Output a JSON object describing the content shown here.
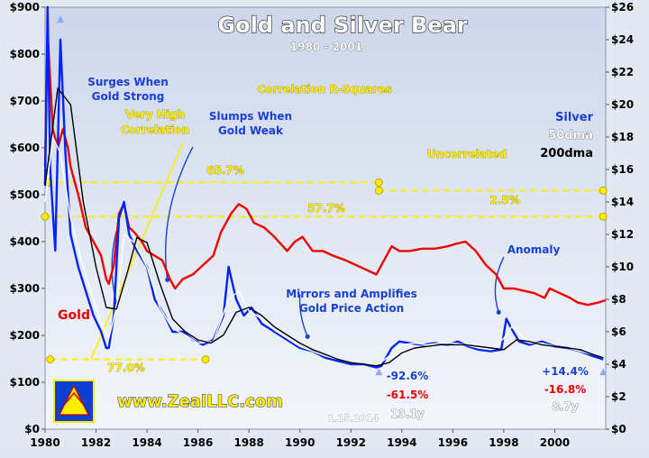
{
  "chart_data": {
    "type": "line",
    "title": "Gold and Silver Bear",
    "subtitle": "1980 - 2001",
    "x": {
      "min": 1980,
      "max": 2002,
      "ticks": [
        "1980",
        "1982",
        "1984",
        "1986",
        "1988",
        "1990",
        "1992",
        "1994",
        "1996",
        "1998",
        "2000"
      ]
    },
    "y_left": {
      "min": 0,
      "max": 900,
      "ticks": [
        "$0",
        "$100",
        "$200",
        "$300",
        "$400",
        "$500",
        "$600",
        "$700",
        "$800",
        "$900"
      ]
    },
    "y_right": {
      "min": 0,
      "max": 26,
      "ticks": [
        "$0",
        "$2",
        "$4",
        "$6",
        "$8",
        "$10",
        "$12",
        "$14",
        "$16",
        "$18",
        "$20",
        "$22",
        "$24",
        "$26"
      ]
    },
    "series": [
      {
        "name": "Gold",
        "color": "#ee0000",
        "axis": "left",
        "x": [
          1980.0,
          1980.1,
          1980.3,
          1980.5,
          1980.7,
          1980.9,
          1981.0,
          1981.3,
          1981.6,
          1981.9,
          1982.2,
          1982.4,
          1982.5,
          1982.7,
          1982.9,
          1983.1,
          1983.3,
          1983.5,
          1983.8,
          1984.0,
          1984.3,
          1984.6,
          1984.9,
          1985.1,
          1985.4,
          1985.8,
          1986.2,
          1986.6,
          1986.9,
          1987.3,
          1987.6,
          1987.9,
          1988.2,
          1988.6,
          1989.0,
          1989.5,
          1989.8,
          1990.1,
          1990.5,
          1990.9,
          1991.3,
          1991.8,
          1992.2,
          1992.6,
          1993.0,
          1993.3,
          1993.6,
          1993.9,
          1994.3,
          1994.8,
          1995.3,
          1995.8,
          1996.1,
          1996.5,
          1996.9,
          1997.3,
          1997.7,
          1998.0,
          1998.4,
          1998.8,
          1999.2,
          1999.6,
          1999.8,
          2000.2,
          2000.6,
          2000.9,
          2001.3,
          2001.7,
          2002.0
        ],
        "y": [
          560,
          850,
          640,
          600,
          640,
          600,
          560,
          500,
          430,
          400,
          370,
          320,
          310,
          350,
          460,
          480,
          430,
          420,
          400,
          380,
          370,
          360,
          320,
          300,
          320,
          330,
          350,
          370,
          420,
          460,
          480,
          470,
          440,
          430,
          410,
          380,
          400,
          410,
          380,
          380,
          370,
          360,
          350,
          340,
          330,
          360,
          390,
          380,
          380,
          385,
          385,
          390,
          395,
          400,
          380,
          350,
          330,
          300,
          300,
          295,
          290,
          280,
          300,
          290,
          280,
          270,
          265,
          270,
          275
        ]
      },
      {
        "name": "Silver",
        "color": "#0022ff",
        "axis": "right",
        "x": [
          1980.0,
          1980.1,
          1980.2,
          1980.4,
          1980.6,
          1980.8,
          1981.0,
          1981.3,
          1981.6,
          1981.9,
          1982.2,
          1982.4,
          1982.5,
          1982.7,
          1982.9,
          1983.1,
          1983.3,
          1983.6,
          1984.0,
          1984.3,
          1984.7,
          1985.0,
          1985.4,
          1985.8,
          1986.2,
          1986.6,
          1987.0,
          1987.2,
          1987.5,
          1987.8,
          1988.1,
          1988.5,
          1989.0,
          1989.5,
          1990.0,
          1990.5,
          1991.0,
          1991.5,
          1992.0,
          1992.5,
          1993.0,
          1993.2,
          1993.6,
          1993.9,
          1994.3,
          1994.8,
          1995.3,
          1995.8,
          1996.2,
          1996.6,
          1997.0,
          1997.5,
          1997.9,
          1998.1,
          1998.3,
          1998.6,
          1999.0,
          1999.5,
          2000.0,
          2000.5,
          2001.0,
          2001.5,
          2001.9
        ],
        "y": [
          15,
          26,
          16,
          11,
          24,
          17,
          12,
          10,
          8.5,
          7,
          6,
          5,
          5,
          7,
          13,
          14,
          12,
          11,
          10,
          8,
          7,
          6,
          6,
          5.5,
          5.2,
          5.5,
          7,
          10,
          8,
          7,
          7.5,
          6.5,
          6,
          5.5,
          5,
          4.8,
          4.4,
          4.2,
          4,
          4,
          3.8,
          3.9,
          5,
          5.4,
          5.3,
          5.2,
          5.3,
          5.2,
          5.4,
          5.1,
          4.9,
          4.8,
          4.9,
          6.8,
          6.2,
          5.4,
          5.2,
          5.4,
          5.1,
          5,
          4.8,
          4.5,
          4.3
        ]
      },
      {
        "name": "50dma",
        "color": "#ffffff",
        "axis": "right",
        "x": [
          1980.0,
          1980.3,
          1980.6,
          1981.0,
          1981.4,
          1981.8,
          1982.2,
          1982.5,
          1982.8,
          1983.1,
          1983.5,
          1984.0,
          1984.5,
          1985.0,
          1985.5,
          1986.0,
          1986.6,
          1987.2,
          1987.6,
          1988.0,
          1988.5,
          1989.0,
          1989.5,
          1990.0,
          1990.5,
          1991.0,
          1991.5,
          1992.0,
          1992.5,
          1993.0,
          1993.5,
          1994.0,
          1994.5,
          1995.0,
          1995.5,
          1996.0,
          1996.5,
          1997.0,
          1997.5,
          1998.0,
          1998.3,
          1998.7,
          1999.0,
          1999.5,
          2000.0,
          2000.5,
          2001.0,
          2001.5,
          2001.9
        ],
        "y": [
          14,
          18,
          17,
          13,
          10.5,
          8.5,
          6.5,
          5.6,
          7.5,
          12,
          11.5,
          10,
          7.5,
          6.2,
          5.8,
          5.3,
          5.4,
          8,
          8.5,
          7.3,
          6.8,
          6.1,
          5.6,
          5.1,
          4.8,
          4.5,
          4.3,
          4.1,
          4,
          3.9,
          4.5,
          5.2,
          5.3,
          5.2,
          5.3,
          5.3,
          5.2,
          5,
          4.9,
          5.6,
          6.3,
          5.8,
          5.3,
          5.3,
          5.1,
          5,
          4.8,
          4.6,
          4.4
        ]
      },
      {
        "name": "200dma",
        "color": "#000000",
        "axis": "right",
        "x": [
          1980.0,
          1980.5,
          1981.0,
          1981.5,
          1982.0,
          1982.4,
          1982.8,
          1983.2,
          1983.6,
          1984.0,
          1984.5,
          1985.0,
          1985.5,
          1986.0,
          1986.5,
          1987.0,
          1987.5,
          1988.0,
          1988.5,
          1989.0,
          1989.5,
          1990.0,
          1990.5,
          1991.0,
          1991.5,
          1992.0,
          1992.5,
          1993.0,
          1993.5,
          1994.0,
          1994.5,
          1995.0,
          1995.5,
          1996.0,
          1996.5,
          1997.0,
          1997.5,
          1998.0,
          1998.5,
          1999.0,
          1999.5,
          2000.0,
          2000.5,
          2001.0,
          2001.5,
          2001.9
        ],
        "y": [
          15,
          21,
          20,
          14,
          10,
          7.5,
          7.4,
          9.5,
          11.8,
          11.5,
          9,
          6.8,
          6,
          5.5,
          5.3,
          5.8,
          7.2,
          7.5,
          7,
          6.3,
          5.8,
          5.3,
          4.9,
          4.6,
          4.3,
          4.1,
          4,
          3.9,
          4.1,
          4.7,
          5,
          5.1,
          5.2,
          5.2,
          5.2,
          5.1,
          5,
          4.9,
          5.5,
          5.4,
          5.2,
          5.1,
          5,
          4.9,
          4.6,
          4.4
        ]
      }
    ],
    "legend": {
      "items": [
        "Silver",
        "50dma",
        "200dma"
      ],
      "placement": "top-right"
    },
    "annotations": {
      "surges": [
        "Surges When",
        "Gold Strong"
      ],
      "very_high": [
        "Very High",
        "Correlation"
      ],
      "slumps": [
        "Slumps When",
        "Gold Weak"
      ],
      "rsq_title": "Correlation R-Squares",
      "r657": "65.7%",
      "r577": "57.7%",
      "r770": "77.0%",
      "uncorrelated": "Uncorrelated",
      "r25": "2.5%",
      "anomaly": "Anomaly",
      "mirrors": [
        "Mirrors and Amplifies",
        "Gold Price Action"
      ],
      "gold_label": "Gold",
      "stat1_silver": "-92.6%",
      "stat1_gold": "-61.5%",
      "stat1_years": "13.1y",
      "stat2_silver": "+14.4%",
      "stat2_gold": "-16.8%",
      "stat2_years": "8.7y",
      "website": "www.ZealLLC.com",
      "date": "1.15.2014"
    },
    "colors": {
      "gold": "#ee0000",
      "silver": "#0022ff",
      "dashed": "#ffee00",
      "background_top": "#cdd7ea",
      "background_bottom": "#f3f6fb"
    },
    "grid": false
  }
}
